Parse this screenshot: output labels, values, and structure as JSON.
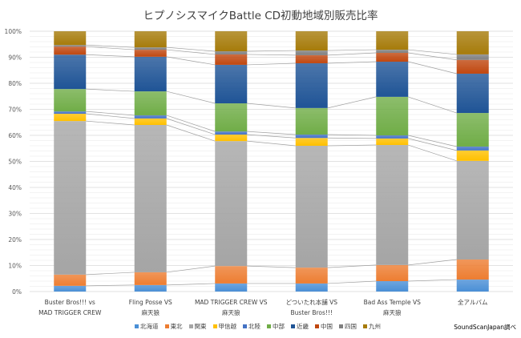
{
  "chart_data": {
    "type": "bar",
    "stacked": "100%",
    "title": "ヒプノシスマイクBattle  CD初動地域別販売比率",
    "categories": [
      [
        "Buster Bros!!! vs",
        "MAD TRIGGER CREW"
      ],
      [
        "Fling Posse VS",
        "麻天狼"
      ],
      [
        "MAD TRIGGER CREW VS",
        "麻天狼"
      ],
      [
        "どついたれ本舗 VS",
        "Buster Bros!!!"
      ],
      [
        "Bad Ass Temple VS",
        "麻天狼"
      ],
      [
        "全アルバム"
      ]
    ],
    "yticks": [
      "0%",
      "10%",
      "20%",
      "30%",
      "40%",
      "50%",
      "60%",
      "70%",
      "80%",
      "90%",
      "100%"
    ],
    "ylim": [
      0,
      100
    ],
    "grid": true,
    "series_lines": true,
    "legend_position": "bottom",
    "series": [
      {
        "name": "北海道",
        "color": "#4a8fd6",
        "values": [
          2.2,
          2.5,
          3.1,
          3.1,
          4.0,
          4.6
        ]
      },
      {
        "name": "東北",
        "color": "#ed7d31",
        "values": [
          4.3,
          4.9,
          6.7,
          6.1,
          6.2,
          7.7
        ]
      },
      {
        "name": "関東",
        "color": "#a5a5a5",
        "values": [
          59.0,
          56.6,
          48.0,
          46.8,
          46.1,
          37.9
        ]
      },
      {
        "name": "甲信越",
        "color": "#ffc000",
        "values": [
          2.8,
          2.5,
          2.5,
          3.0,
          2.5,
          4.0
        ]
      },
      {
        "name": "北陸",
        "color": "#4472c4",
        "values": [
          0.9,
          1.2,
          1.2,
          1.3,
          1.2,
          1.5
        ]
      },
      {
        "name": "中部",
        "color": "#70ad47",
        "values": [
          8.6,
          9.2,
          10.8,
          10.2,
          14.8,
          12.9
        ]
      },
      {
        "name": "近畿",
        "color": "#1f5496",
        "values": [
          13.2,
          13.3,
          14.8,
          17.2,
          13.5,
          15.1
        ]
      },
      {
        "name": "中国",
        "color": "#c0470f",
        "values": [
          3.1,
          2.7,
          4.0,
          3.1,
          3.4,
          5.3
        ]
      },
      {
        "name": "四国",
        "color": "#7f7f7f",
        "values": [
          0.6,
          0.9,
          1.2,
          1.8,
          1.2,
          2.1
        ]
      },
      {
        "name": "九州",
        "color": "#a67b0a",
        "values": [
          5.3,
          6.2,
          7.7,
          7.4,
          7.1,
          8.9
        ]
      }
    ]
  },
  "source": "SoundScanJapan調べ"
}
